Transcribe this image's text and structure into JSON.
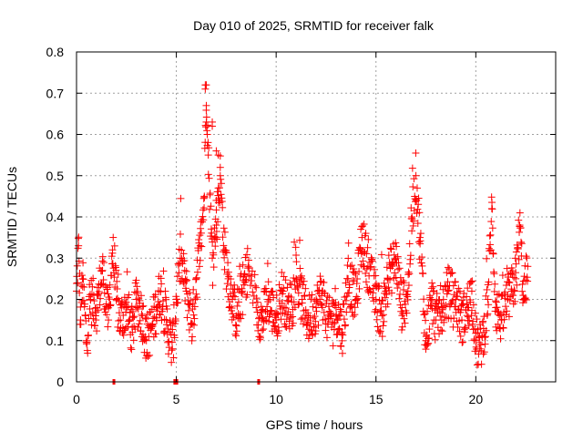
{
  "chart_data": {
    "type": "scatter",
    "title": "Day 010 of 2025, SRMTID for receiver falk",
    "xlabel": "GPS time / hours",
    "ylabel": "SRMTID / TECUs",
    "xlim": [
      0,
      24
    ],
    "ylim": [
      0,
      0.8
    ],
    "xticks": [
      0,
      5,
      10,
      15,
      20
    ],
    "xtick_labels": [
      "0",
      "5",
      "10",
      "15",
      "20"
    ],
    "yticks": [
      0,
      0.1,
      0.2,
      0.3,
      0.4,
      0.5,
      0.6,
      0.7,
      0.8
    ],
    "ytick_labels": [
      "0",
      "0.1",
      "0.2",
      "0.3",
      "0.4",
      "0.5",
      "0.6",
      "0.7",
      "0.8"
    ],
    "grid": true,
    "legend": "none",
    "marker": "plus",
    "color": "#ff0000",
    "series": [
      {
        "name": "SRMTID",
        "description": "Dense point cloud (approx. one point per 30 s); representative samples of the envelope read from the plot",
        "x": [
          0.0,
          0.1,
          0.2,
          0.3,
          0.5,
          0.7,
          1.0,
          1.3,
          1.6,
          1.8,
          2.0,
          2.2,
          2.5,
          2.8,
          3.0,
          3.3,
          3.5,
          3.8,
          4.0,
          4.2,
          4.5,
          4.8,
          5.0,
          5.2,
          5.5,
          5.8,
          6.0,
          6.2,
          6.4,
          6.5,
          6.6,
          6.8,
          7.0,
          7.2,
          7.4,
          7.6,
          7.8,
          8.0,
          8.3,
          8.6,
          9.0,
          9.3,
          9.6,
          10.0,
          10.3,
          10.6,
          11.0,
          11.3,
          11.6,
          12.0,
          12.3,
          12.6,
          13.0,
          13.3,
          13.6,
          14.0,
          14.3,
          14.6,
          15.0,
          15.3,
          15.6,
          16.0,
          16.3,
          16.6,
          16.8,
          17.0,
          17.2,
          17.5,
          17.8,
          18.0,
          18.3,
          18.6,
          19.0,
          19.3,
          19.6,
          19.8,
          20.0,
          20.2,
          20.4,
          20.6,
          20.8,
          21.0,
          21.3,
          21.6,
          21.8,
          22.0,
          22.2,
          22.4,
          22.6
        ],
        "y": [
          0.22,
          0.33,
          0.15,
          0.25,
          0.1,
          0.2,
          0.18,
          0.27,
          0.15,
          0.32,
          0.2,
          0.15,
          0.18,
          0.12,
          0.2,
          0.16,
          0.1,
          0.14,
          0.18,
          0.22,
          0.15,
          0.08,
          0.2,
          0.3,
          0.22,
          0.14,
          0.25,
          0.33,
          0.45,
          0.72,
          0.55,
          0.3,
          0.38,
          0.5,
          0.32,
          0.25,
          0.2,
          0.16,
          0.22,
          0.28,
          0.18,
          0.15,
          0.2,
          0.15,
          0.22,
          0.17,
          0.25,
          0.2,
          0.15,
          0.18,
          0.22,
          0.14,
          0.18,
          0.12,
          0.25,
          0.2,
          0.35,
          0.28,
          0.2,
          0.16,
          0.25,
          0.3,
          0.18,
          0.22,
          0.4,
          0.5,
          0.35,
          0.1,
          0.2,
          0.15,
          0.18,
          0.22,
          0.2,
          0.15,
          0.18,
          0.22,
          0.1,
          0.08,
          0.12,
          0.2,
          0.42,
          0.18,
          0.15,
          0.2,
          0.22,
          0.25,
          0.38,
          0.2,
          0.28
        ]
      }
    ],
    "zero_points_x": [
      1.85,
      4.9,
      5.0,
      9.1
    ]
  }
}
